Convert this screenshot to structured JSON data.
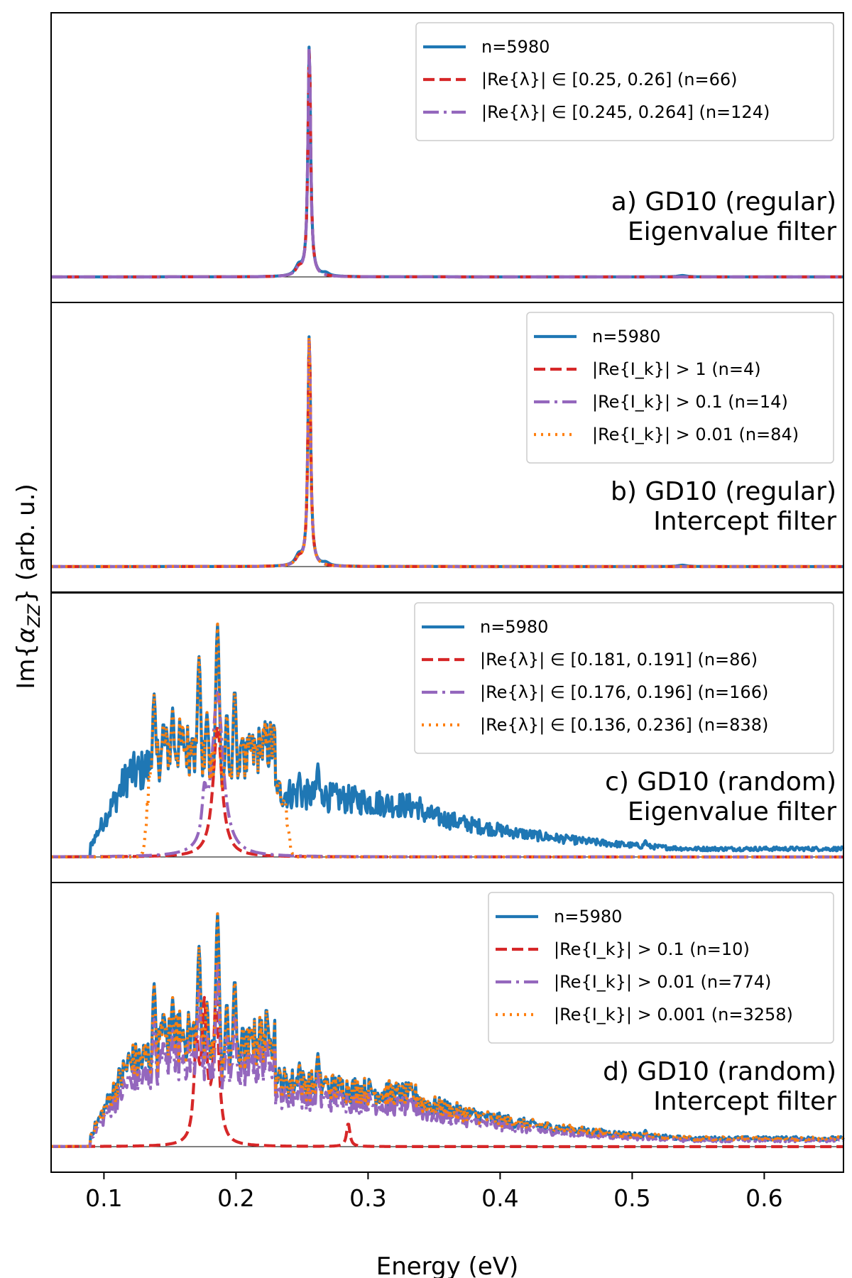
{
  "figure": {
    "xlabel": "Energy (eV)",
    "ylabel": "Im{α_ZZ} (arb. u.)",
    "xlim": [
      0.06,
      0.66
    ],
    "xticks": [
      "0.1",
      "0.2",
      "0.3",
      "0.4",
      "0.5",
      "0.6"
    ],
    "colors": {
      "blue": "#1f77b4",
      "red": "#d62728",
      "purple": "#9467bd",
      "orange": "#ff7f0e"
    }
  },
  "chart_data": [
    {
      "type": "line",
      "title_line1": "a) GD10 (regular)",
      "title_line2": "Eigenvalue filter",
      "legend": [
        "n=5980",
        "|Re{λ}| ∈ [0.25, 0.26] (n=66)",
        "|Re{λ}| ∈ [0.245, 0.264] (n=124)"
      ],
      "legend_placement": "top-right",
      "ylim": [
        0,
        1.1
      ]
    },
    {
      "type": "line",
      "title_line1": "b) GD10 (regular)",
      "title_line2": "Intercept filter",
      "legend": [
        "n=5980",
        "|Re{I_k}| > 1 (n=4)",
        "|Re{I_k}| > 0.1 (n=14)",
        "|Re{I_k}| > 0.01 (n=84)"
      ],
      "legend_placement": "top-right",
      "ylim": [
        0,
        1.1
      ]
    },
    {
      "type": "line",
      "title_line1": "c) GD10 (random)",
      "title_line2": "Eigenvalue filter",
      "legend": [
        "n=5980",
        "|Re{λ}| ∈ [0.181, 0.191] (n=86)",
        "|Re{λ}| ∈ [0.176, 0.196] (n=166)",
        "|Re{λ}| ∈ [0.136, 0.236] (n=838)"
      ],
      "legend_placement": "top-right",
      "ylim": [
        0,
        1.1
      ]
    },
    {
      "type": "line",
      "title_line1": "d) GD10 (random)",
      "title_line2": "Intercept filter",
      "legend": [
        "n=5980",
        "|Re{I_k}| > 0.1 (n=10)",
        "|Re{I_k}| > 0.01 (n=774)",
        "|Re{I_k}| > 0.001 (n=3258)"
      ],
      "legend_placement": "top-right",
      "ylim": [
        0,
        1.1
      ]
    }
  ]
}
